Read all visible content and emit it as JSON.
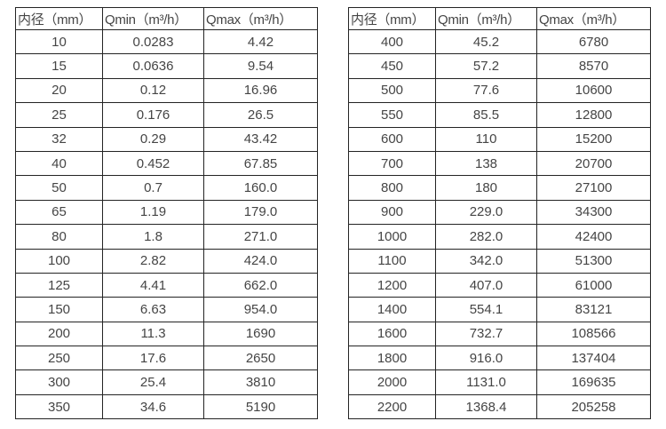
{
  "colors": {
    "background": "#ffffff",
    "border": "#242424",
    "text": "#454545"
  },
  "tables": [
    {
      "name": "flow-table-small-diameters",
      "headers": [
        "内径（mm）",
        "Qmin（m³/h）",
        "Qmax（m³/h）"
      ],
      "rows": [
        [
          "10",
          "0.0283",
          "4.42"
        ],
        [
          "15",
          "0.0636",
          "9.54"
        ],
        [
          "20",
          "0.12",
          "16.96"
        ],
        [
          "25",
          "0.176",
          "26.5"
        ],
        [
          "32",
          "0.29",
          "43.42"
        ],
        [
          "40",
          "0.452",
          "67.85"
        ],
        [
          "50",
          "0.7",
          "160.0"
        ],
        [
          "65",
          "1.19",
          "179.0"
        ],
        [
          "80",
          "1.8",
          "271.0"
        ],
        [
          "100",
          "2.82",
          "424.0"
        ],
        [
          "125",
          "4.41",
          "662.0"
        ],
        [
          "150",
          "6.63",
          "954.0"
        ],
        [
          "200",
          "11.3",
          "1690"
        ],
        [
          "250",
          "17.6",
          "2650"
        ],
        [
          "300",
          "25.4",
          "3810"
        ],
        [
          "350",
          "34.6",
          "5190"
        ]
      ]
    },
    {
      "name": "flow-table-large-diameters",
      "headers": [
        "内径（mm）",
        "Qmin（m³/h）",
        "Qmax（m³/h）"
      ],
      "rows": [
        [
          "400",
          "45.2",
          "6780"
        ],
        [
          "450",
          "57.2",
          "8570"
        ],
        [
          "500",
          "77.6",
          "10600"
        ],
        [
          "550",
          "85.5",
          "12800"
        ],
        [
          "600",
          "110",
          "15200"
        ],
        [
          "700",
          "138",
          "20700"
        ],
        [
          "800",
          "180",
          "27100"
        ],
        [
          "900",
          "229.0",
          "34300"
        ],
        [
          "1000",
          "282.0",
          "42400"
        ],
        [
          "1100",
          "342.0",
          "51300"
        ],
        [
          "1200",
          "407.0",
          "61000"
        ],
        [
          "1400",
          "554.1",
          "83121"
        ],
        [
          "1600",
          "732.7",
          "108566"
        ],
        [
          "1800",
          "916.0",
          "137404"
        ],
        [
          "2000",
          "1131.0",
          "169635"
        ],
        [
          "2200",
          "1368.4",
          "205258"
        ]
      ]
    }
  ]
}
